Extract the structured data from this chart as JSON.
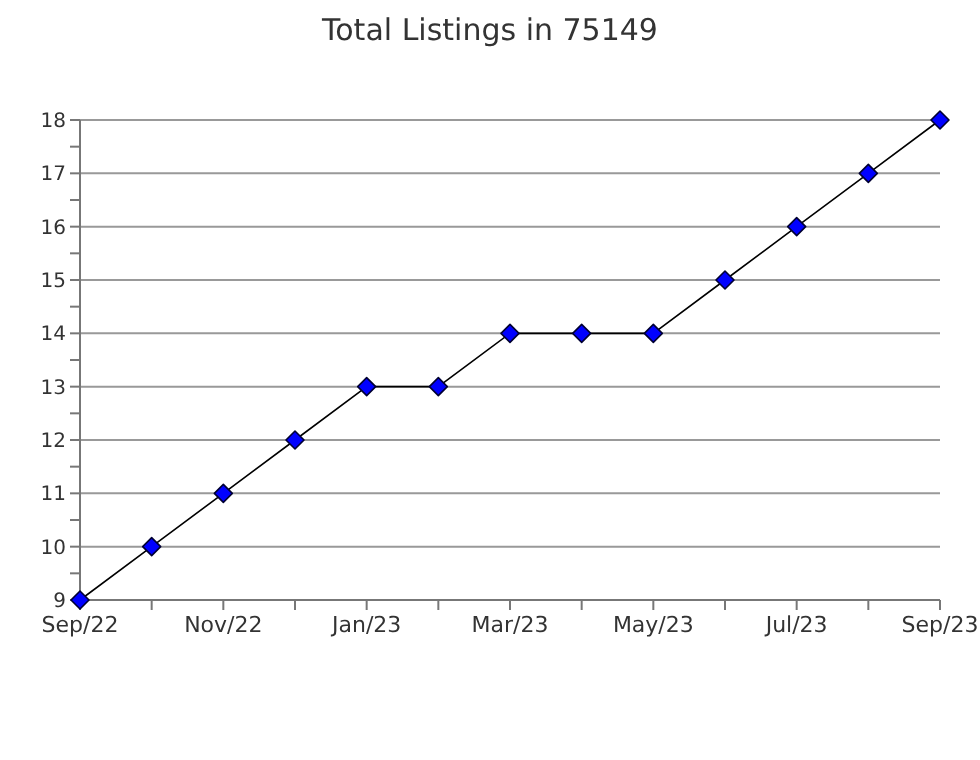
{
  "chart_data": {
    "type": "line",
    "title": "Total Listings in 75149",
    "categories": [
      "Sep/22",
      null,
      "Nov/22",
      null,
      "Jan/23",
      null,
      "Mar/23",
      null,
      "May/23",
      null,
      "Jul/23",
      null,
      "Sep/23"
    ],
    "series": [
      {
        "color": "#000000",
        "colors": [
          "#0000ff",
          "#0000ff",
          "#0000ff",
          "#0000ff",
          "#0000ff",
          "#0000ff",
          "#0000ff",
          "#0000ff",
          "#0000ff",
          "#0000ff",
          "#0000ff",
          "#0000ff",
          "#0000ff"
        ],
        "values": [
          9,
          10,
          11,
          12,
          13,
          13,
          14,
          14,
          14,
          15,
          16,
          17,
          18
        ]
      }
    ],
    "ylim": [
      9,
      18
    ],
    "yticks": [
      9,
      {
        "value": 9.5,
        "label": null
      },
      10,
      {
        "value": 10.5,
        "label": null
      },
      11,
      {
        "value": 11.5,
        "label": null
      },
      12,
      {
        "value": 12.5,
        "label": null
      },
      13,
      {
        "value": 13.5,
        "label": null
      },
      14,
      {
        "value": 14.5,
        "label": null
      },
      15,
      {
        "value": 15.5,
        "label": null
      },
      16,
      {
        "value": 16.5,
        "label": null
      },
      17,
      {
        "value": 17.5,
        "label": null
      },
      18
    ],
    "grid": "y",
    "marker": "diamond",
    "line_style": "solid"
  }
}
